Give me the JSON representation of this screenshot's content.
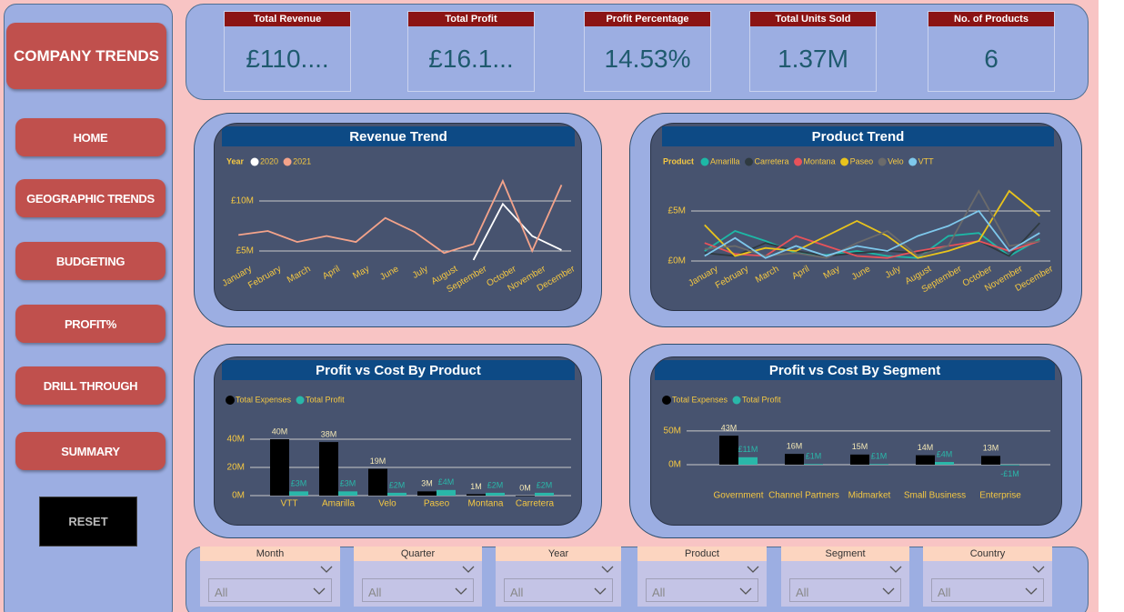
{
  "sidebar": {
    "title": "COMPANY TRENDS",
    "buttons": [
      "HOME",
      "GEOGRAPHIC TRENDS",
      "BUDGETING",
      "PROFIT%",
      "DRILL THROUGH",
      "SUMMARY"
    ],
    "reset": "RESET"
  },
  "kpis": [
    {
      "label": "Total Revenue",
      "value": "£110...."
    },
    {
      "label": "Total Profit",
      "value": "£16.1..."
    },
    {
      "label": "Profit Percentage",
      "value": "14.53%"
    },
    {
      "label": "Total Units Sold",
      "value": "1.37M"
    },
    {
      "label": "No. of Products",
      "value": "6"
    }
  ],
  "chart_data": [
    {
      "type": "line",
      "title": "Revenue Trend",
      "legend_title": "Year",
      "categories": [
        "January",
        "February",
        "March",
        "April",
        "May",
        "June",
        "July",
        "August",
        "September",
        "October",
        "November",
        "December"
      ],
      "series": [
        {
          "name": "2020",
          "color": "#ffffff",
          "values": [
            null,
            null,
            null,
            null,
            null,
            null,
            null,
            null,
            4.1,
            9.7,
            6.5,
            5.1
          ]
        },
        {
          "name": "2021",
          "color": "#f4a38a",
          "values": [
            6.6,
            7.0,
            5.9,
            6.5,
            5.9,
            8.3,
            6.9,
            4.8,
            5.7,
            12.0,
            5.0,
            11.6
          ]
        }
      ],
      "ylim": [
        4,
        12.5
      ],
      "yticks": [
        {
          "value": 5,
          "label": "£5M"
        },
        {
          "value": 10,
          "label": "£10M"
        }
      ],
      "grid": true
    },
    {
      "type": "line",
      "title": "Product Trend",
      "legend_title": "Product",
      "categories": [
        "January",
        "February",
        "March",
        "April",
        "May",
        "June",
        "July",
        "August",
        "September",
        "October",
        "November",
        "December"
      ],
      "series": [
        {
          "name": "Amarilla",
          "color": "#1db8a6",
          "values": [
            1.0,
            3.0,
            2.0,
            0.8,
            0.6,
            1.0,
            0.5,
            0.3,
            2.5,
            2.8,
            0.5,
            2.2
          ]
        },
        {
          "name": "Carretera",
          "color": "#2f3a40",
          "values": [
            0.8,
            0.5,
            1.8,
            1.0,
            0.5,
            0.8,
            1.0,
            0.8,
            1.5,
            2.0,
            0.5,
            3.8
          ]
        },
        {
          "name": "Montana",
          "color": "#e8525a",
          "values": [
            1.8,
            0.7,
            0.5,
            2.5,
            1.5,
            0.5,
            0.3,
            1.0,
            1.5,
            2.0,
            1.0,
            2.0
          ]
        },
        {
          "name": "Paseo",
          "color": "#e8c31c",
          "values": [
            3.6,
            0.5,
            1.3,
            1.0,
            2.5,
            4.0,
            2.5,
            0.3,
            1.0,
            2.0,
            7.0,
            4.5
          ]
        },
        {
          "name": "Velo",
          "color": "#6b6b6b",
          "values": [
            1.2,
            1.5,
            0.5,
            0.8,
            0.3,
            1.8,
            3.0,
            0.5,
            1.5,
            7.0,
            1.5,
            2.0
          ]
        },
        {
          "name": "VTT",
          "color": "#7ec8ec",
          "values": [
            0.5,
            2.3,
            0.3,
            1.5,
            0.5,
            1.5,
            1.0,
            2.5,
            3.5,
            5.0,
            1.0,
            2.8
          ]
        }
      ],
      "ylim": [
        0,
        8
      ],
      "yticks": [
        {
          "value": 0,
          "label": "£0M"
        },
        {
          "value": 5,
          "label": "£5M"
        }
      ],
      "grid": true
    },
    {
      "type": "bar",
      "title": "Profit vs Cost By Product",
      "categories": [
        "VTT",
        "Amarilla",
        "Velo",
        "Paseo",
        "Montana",
        "Carretera"
      ],
      "series": [
        {
          "name": "Total Expenses",
          "color": "#000000",
          "values": [
            40,
            38,
            19,
            3,
            1,
            0
          ],
          "value_labels": [
            "40M",
            "38M",
            "19M",
            "3M",
            "1M",
            "0M"
          ]
        },
        {
          "name": "Total Profit",
          "color": "#2ab7a9",
          "values": [
            3,
            3,
            2,
            4,
            2,
            2
          ],
          "value_labels": [
            "£3M",
            "£3M",
            "£2M",
            "£4M",
            "£2M",
            "£2M"
          ]
        }
      ],
      "ylim": [
        0,
        48
      ],
      "yticks": [
        {
          "value": 0,
          "label": "0M"
        },
        {
          "value": 20,
          "label": "20M"
        },
        {
          "value": 40,
          "label": "40M"
        }
      ],
      "grid": true
    },
    {
      "type": "bar",
      "title": "Profit vs Cost By Segment",
      "categories": [
        "Government",
        "Channel Partners",
        "Midmarket",
        "Small Business",
        "Enterprise"
      ],
      "series": [
        {
          "name": "Total Expenses",
          "color": "#000000",
          "values": [
            43,
            16,
            15,
            14,
            13
          ],
          "value_labels": [
            "43M",
            "16M",
            "15M",
            "14M",
            "13M"
          ]
        },
        {
          "name": "Total Profit",
          "color": "#2ab7a9",
          "values": [
            11,
            1,
            1,
            4,
            -1
          ],
          "value_labels": [
            "£11M",
            "£1M",
            "£1M",
            "£4M",
            "-£1M"
          ]
        }
      ],
      "ylim": [
        -8,
        58
      ],
      "yticks": [
        {
          "value": 0,
          "label": "0M"
        },
        {
          "value": 50,
          "label": "50M"
        }
      ],
      "grid": true
    }
  ],
  "filters": [
    {
      "label": "Month",
      "value": "All"
    },
    {
      "label": "Quarter",
      "value": "All"
    },
    {
      "label": "Year",
      "value": "All"
    },
    {
      "label": "Product",
      "value": "All"
    },
    {
      "label": "Segment",
      "value": "All"
    },
    {
      "label": "Country",
      "value": "All"
    }
  ]
}
